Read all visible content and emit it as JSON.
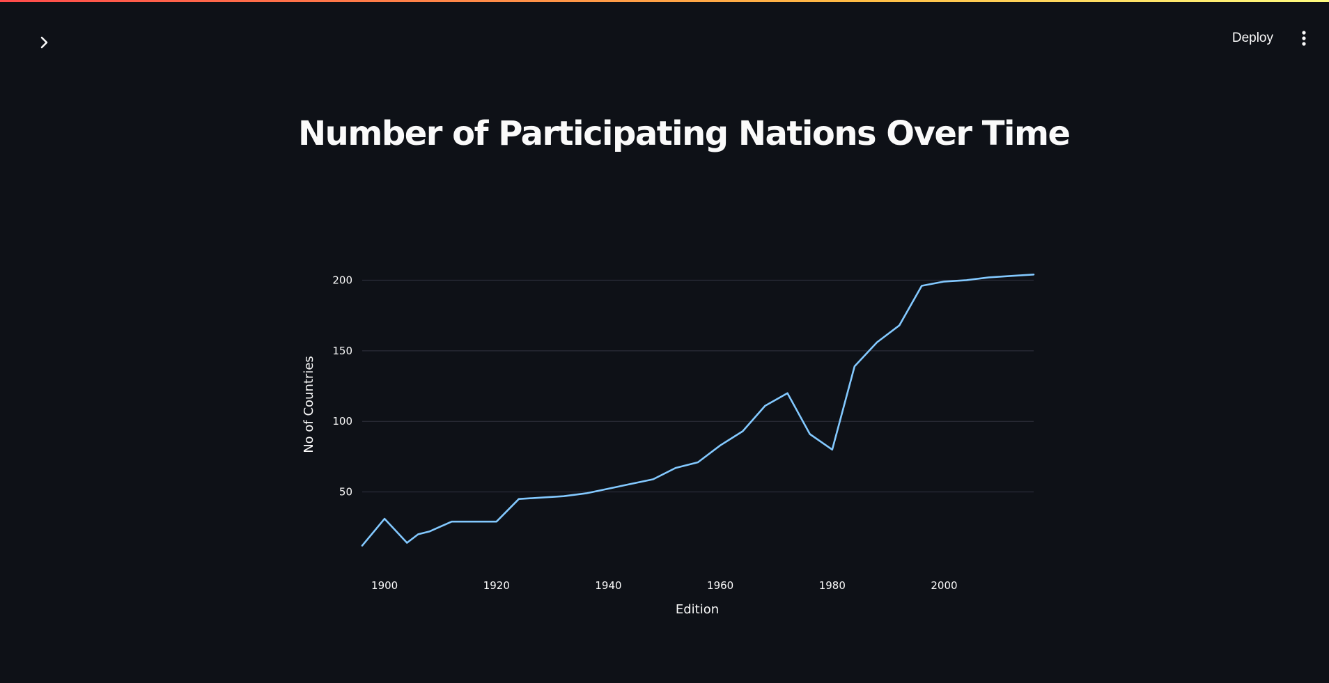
{
  "header": {
    "deploy_label": "Deploy"
  },
  "page": {
    "title": "Number of Participating Nations Over Time"
  },
  "icons": {
    "sidebar_toggle": "chevron-right-icon",
    "menu": "vertical-dots-icon"
  },
  "colors": {
    "background": "#0e1117",
    "line": "#83c9ff",
    "grid": "#31333f",
    "text": "#fafafa"
  },
  "chart_data": {
    "type": "line",
    "title": "",
    "xlabel": "Edition",
    "ylabel": "No of Countries",
    "x_ticks": [
      "1900",
      "1920",
      "1940",
      "1960",
      "1980",
      "2000"
    ],
    "y_ticks": [
      "50",
      "100",
      "150",
      "200"
    ],
    "xlim": [
      1896,
      2016
    ],
    "ylim": [
      0,
      215
    ],
    "grid": "horizontal",
    "series": [
      {
        "x": [
          1896,
          1900,
          1904,
          1906,
          1908,
          1912,
          1920,
          1924,
          1928,
          1932,
          1936,
          1948,
          1952,
          1956,
          1960,
          1964,
          1968,
          1972,
          1976,
          1980,
          1984,
          1988,
          1992,
          1996,
          2000,
          2004,
          2008,
          2012,
          2016
        ],
        "y": [
          12,
          31,
          14,
          20,
          22,
          29,
          29,
          45,
          46,
          47,
          49,
          59,
          67,
          71,
          83,
          93,
          111,
          120,
          91,
          80,
          139,
          156,
          168,
          196,
          199,
          200,
          202,
          203,
          204
        ]
      }
    ]
  }
}
